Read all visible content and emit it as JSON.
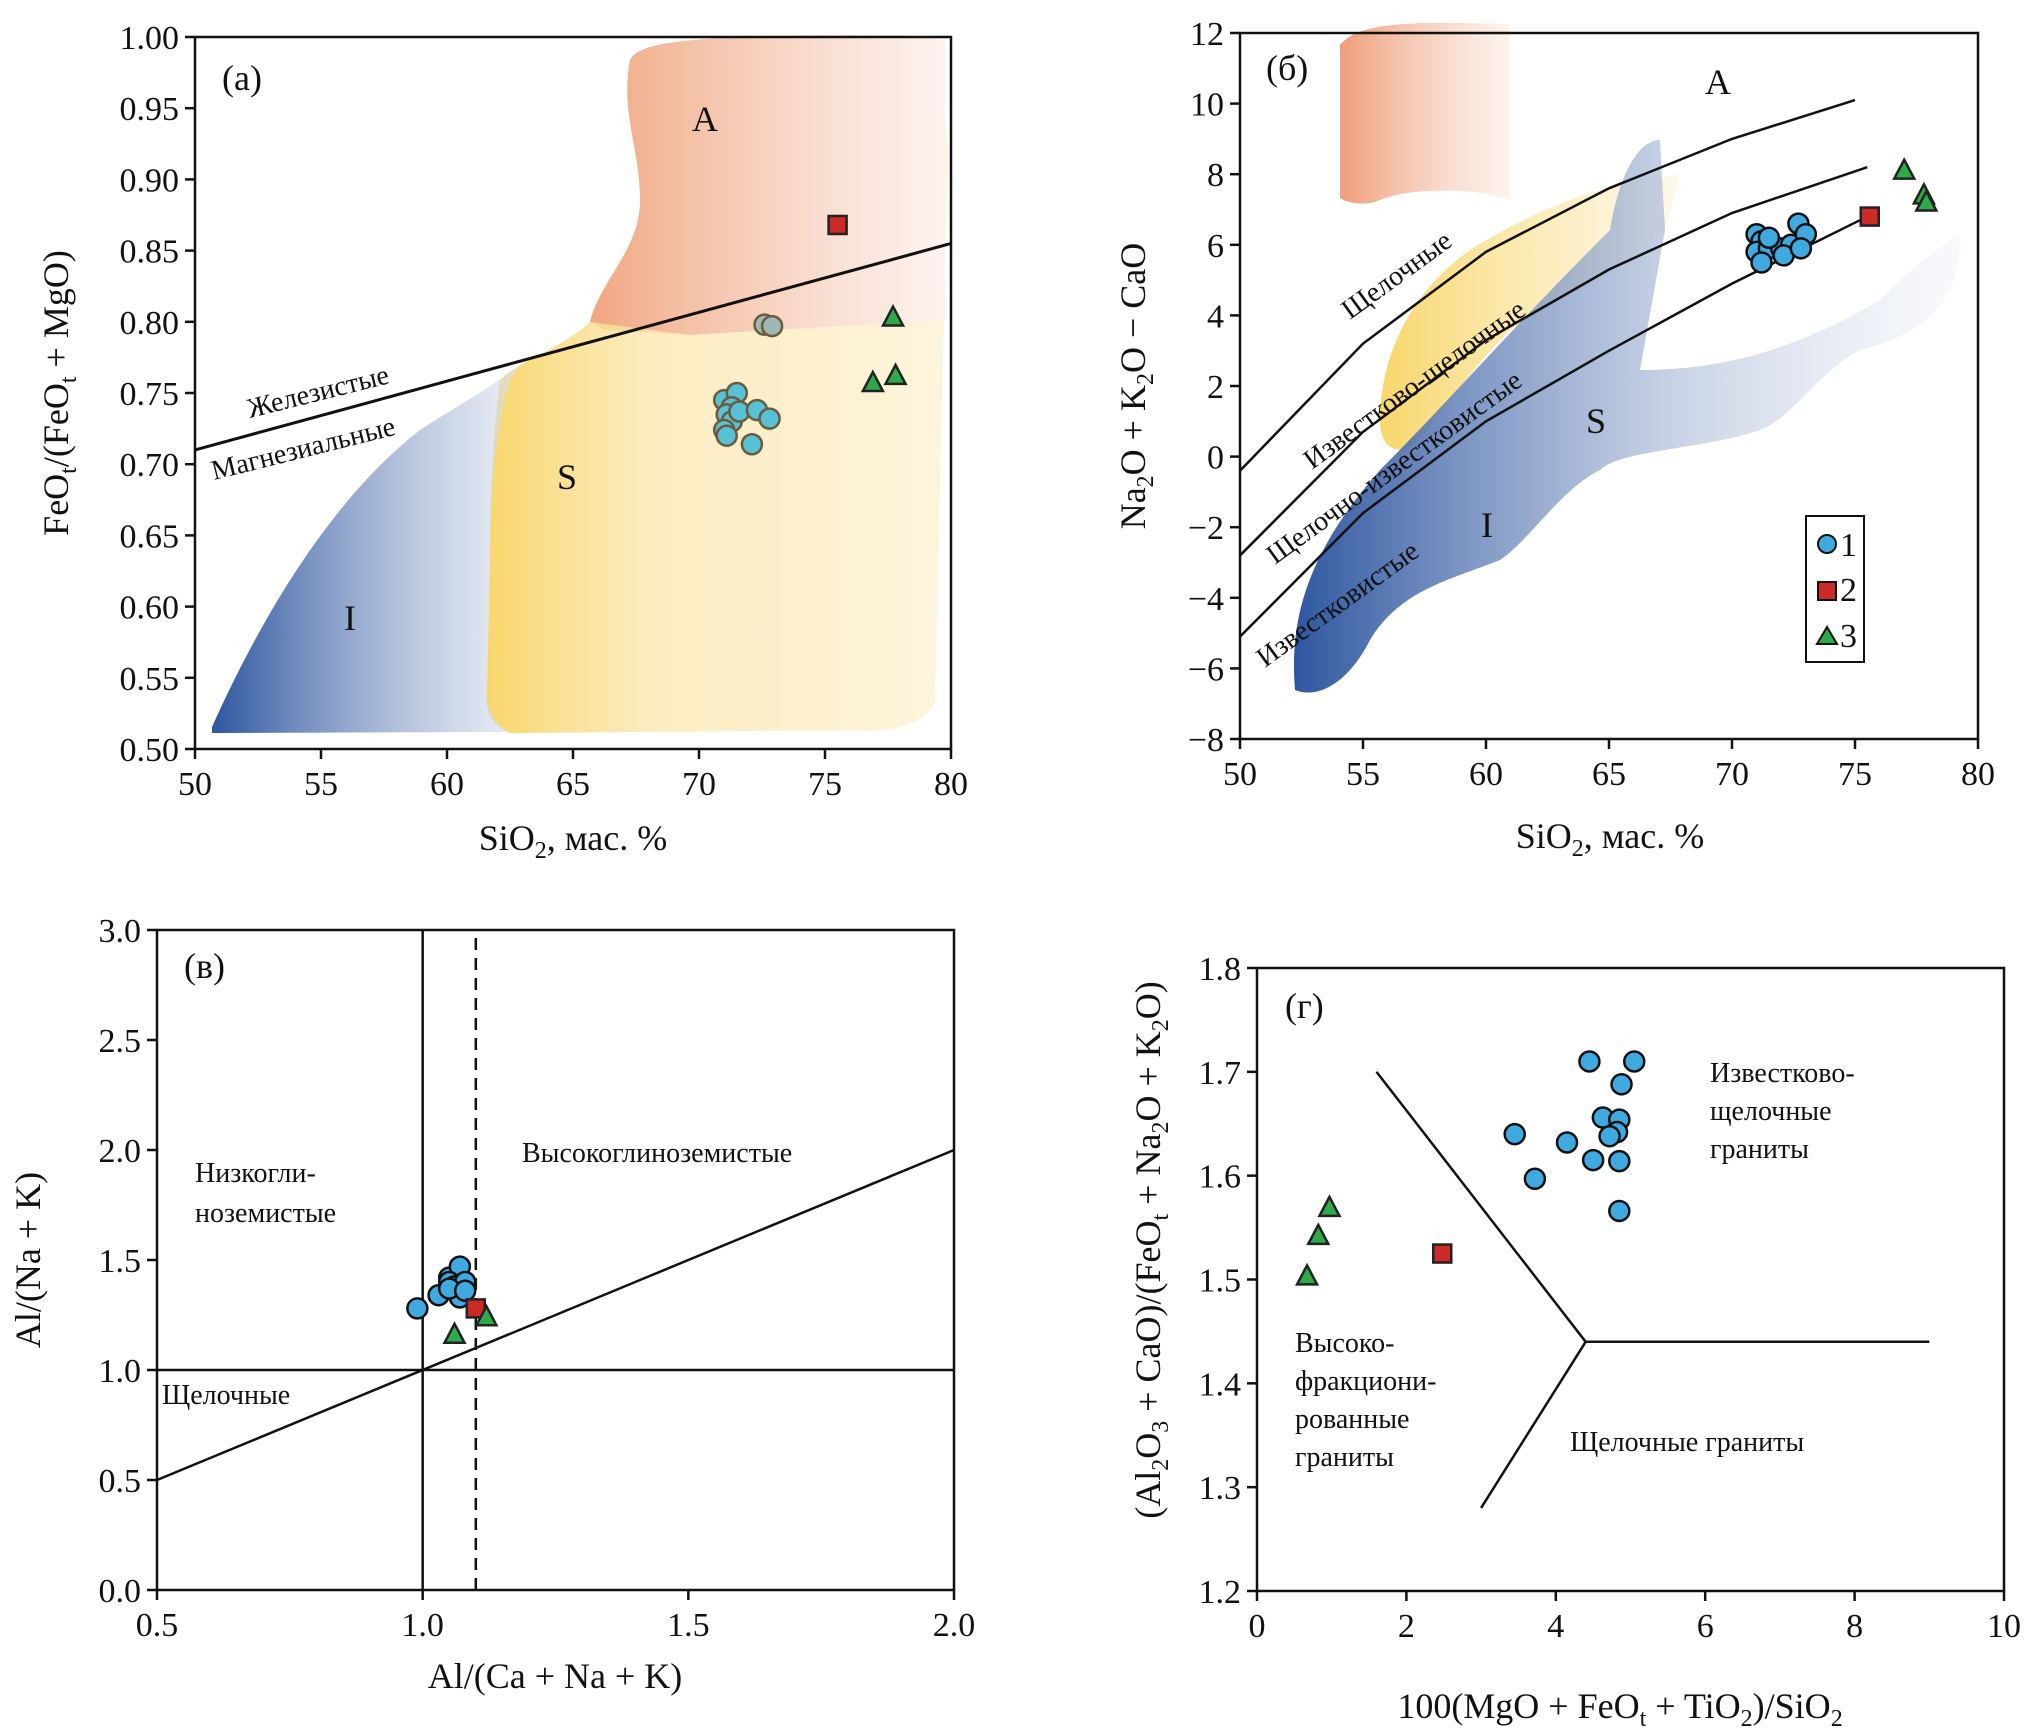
{
  "colors": {
    "circle": "#3fa9e0",
    "circle_a": "#57c2d6",
    "circle_a_faded": "#9fb8b4",
    "square": "#cc2a27",
    "triangle": "#2faa4a",
    "field_A": "#f0a27a",
    "field_S": "#f7d25a",
    "field_I": "#2e56a0"
  },
  "legend": {
    "items": [
      {
        "marker": "circle",
        "label": "1"
      },
      {
        "marker": "square",
        "label": "2"
      },
      {
        "marker": "triangle",
        "label": "3"
      }
    ],
    "position": "bottom-right of panel б"
  },
  "chart_data": [
    {
      "panel": "(a)",
      "type": "scatter",
      "xlabel": "SiO₂, мас. %",
      "ylabel": "FeOt/(FeOt + MgO)",
      "xlim": [
        50,
        80
      ],
      "ylim": [
        0.5,
        1.0
      ],
      "xticks": [
        "50",
        "55",
        "60",
        "65",
        "70",
        "75",
        "80"
      ],
      "yticks": [
        "0.50",
        "0.55",
        "0.60",
        "0.65",
        "0.70",
        "0.75",
        "0.80",
        "0.85",
        "0.90",
        "0.95",
        "1.00"
      ],
      "field_labels": {
        "A": "A",
        "S": "S",
        "I": "I"
      },
      "line_labels": {
        "upper": "Железистые",
        "lower": "Магнезиальные"
      },
      "boundary_line": [
        [
          50,
          0.71
        ],
        [
          80,
          0.855
        ]
      ],
      "series": [
        {
          "name": "1",
          "marker": "circle",
          "points": [
            [
              71.0,
              0.745
            ],
            [
              71.5,
              0.75
            ],
            [
              71.3,
              0.74
            ],
            [
              71.1,
              0.735
            ],
            [
              71.3,
              0.73
            ],
            [
              71.6,
              0.737
            ],
            [
              72.3,
              0.738
            ],
            [
              72.8,
              0.732
            ],
            [
              71.0,
              0.724
            ],
            [
              71.1,
              0.72
            ],
            [
              72.1,
              0.714
            ]
          ]
        },
        {
          "name": "1 (faded)",
          "marker": "circle",
          "points": [
            [
              72.6,
              0.798
            ],
            [
              72.9,
              0.797
            ]
          ]
        },
        {
          "name": "2",
          "marker": "square",
          "points": [
            [
              75.5,
              0.868
            ]
          ]
        },
        {
          "name": "3",
          "marker": "triangle",
          "points": [
            [
              77.7,
              0.803
            ],
            [
              76.9,
              0.757
            ],
            [
              77.8,
              0.762
            ]
          ]
        }
      ]
    },
    {
      "panel": "(б)",
      "type": "scatter",
      "xlabel": "SiO₂, мас. %",
      "ylabel": "Na₂O + K₂O − CaO",
      "xlim": [
        50,
        80
      ],
      "ylim": [
        -8,
        12
      ],
      "xticks": [
        "50",
        "55",
        "60",
        "65",
        "70",
        "75",
        "80"
      ],
      "yticks": [
        "−8",
        "−6",
        "−4",
        "−2",
        "0",
        "2",
        "4",
        "6",
        "8",
        "10",
        "12"
      ],
      "field_labels": {
        "A": "A",
        "S": "S",
        "I": "I"
      },
      "line_labels": [
        "Щелочные",
        "Известково-щелочные",
        "Щелочно-известковистые",
        "Известковистые"
      ],
      "boundary_lines": [
        [
          [
            50,
            -0.4
          ],
          [
            55,
            3.2
          ],
          [
            60,
            5.8
          ],
          [
            65,
            7.6
          ],
          [
            70,
            9.0
          ],
          [
            75,
            10.1
          ]
        ],
        [
          [
            50,
            -2.8
          ],
          [
            55,
            0.7
          ],
          [
            60,
            3.3
          ],
          [
            65,
            5.3
          ],
          [
            70,
            6.9
          ],
          [
            75.5,
            8.2
          ]
        ],
        [
          [
            50,
            -5.1
          ],
          [
            55,
            -1.6
          ],
          [
            60,
            1.0
          ],
          [
            65,
            3.0
          ],
          [
            70,
            4.9
          ],
          [
            75.5,
            6.8
          ]
        ]
      ],
      "series": [
        {
          "name": "1",
          "marker": "circle",
          "points": [
            [
              71.0,
              6.3
            ],
            [
              71.2,
              6.1
            ],
            [
              71.0,
              5.8
            ],
            [
              71.5,
              5.9
            ],
            [
              71.2,
              5.5
            ],
            [
              72.0,
              5.9
            ],
            [
              72.4,
              6.0
            ],
            [
              72.1,
              5.7
            ],
            [
              72.7,
              6.6
            ],
            [
              73.0,
              6.3
            ],
            [
              72.8,
              5.9
            ],
            [
              71.5,
              6.2
            ]
          ]
        },
        {
          "name": "2",
          "marker": "square",
          "points": [
            [
              75.6,
              6.8
            ]
          ]
        },
        {
          "name": "3",
          "marker": "triangle",
          "points": [
            [
              77.0,
              8.1
            ],
            [
              77.8,
              7.4
            ],
            [
              77.9,
              7.2
            ]
          ]
        }
      ]
    },
    {
      "panel": "(в)",
      "type": "scatter",
      "xlabel": "Al/(Ca + Na + K)",
      "ylabel": "Al/(Na + K)",
      "xlim": [
        0.5,
        2.0
      ],
      "ylim": [
        0.0,
        3.0
      ],
      "xticks": [
        "0.5",
        "1.0",
        "1.5",
        "2.0"
      ],
      "yticks": [
        "0.0",
        "0.5",
        "1.0",
        "1.5",
        "2.0",
        "2.5",
        "3.0"
      ],
      "region_labels": {
        "left": "Низкогли-|ноземистые",
        "right": "Высокоглиноземистые",
        "bottom": "Щелочные"
      },
      "lines": {
        "vertical_solid": 1.0,
        "vertical_dashed": 1.1,
        "horizontal": 1.0,
        "diagonal": [
          [
            0.5,
            0.5
          ],
          [
            2.0,
            2.0
          ]
        ]
      },
      "series": [
        {
          "name": "1",
          "marker": "circle",
          "points": [
            [
              0.99,
              1.28
            ],
            [
              1.03,
              1.34
            ],
            [
              1.05,
              1.42
            ],
            [
              1.07,
              1.47
            ],
            [
              1.05,
              1.4
            ],
            [
              1.06,
              1.38
            ],
            [
              1.08,
              1.4
            ],
            [
              1.07,
              1.33
            ],
            [
              1.05,
              1.37
            ],
            [
              1.08,
              1.36
            ]
          ]
        },
        {
          "name": "2",
          "marker": "square",
          "points": [
            [
              1.1,
              1.28
            ]
          ]
        },
        {
          "name": "3",
          "marker": "triangle",
          "points": [
            [
              1.06,
              1.16
            ],
            [
              1.12,
              1.24
            ]
          ]
        }
      ]
    },
    {
      "panel": "(г)",
      "type": "scatter",
      "xlabel": "100(MgO + FeOt + TiO₂)/SiO₂",
      "ylabel": "(Al₂O₃ + CaO)/(FeOt + Na₂O + K₂O)",
      "xlim": [
        0,
        10
      ],
      "ylim": [
        1.2,
        1.8
      ],
      "xticks": [
        "0",
        "2",
        "4",
        "6",
        "8",
        "10"
      ],
      "yticks": [
        "1.2",
        "1.3",
        "1.4",
        "1.5",
        "1.6",
        "1.7",
        "1.8"
      ],
      "region_labels": {
        "upper_right": "Известково-|щелочные|граниты",
        "left": "Высоко-|фракциони-|рованные|граниты",
        "lower_right": "Щелочные граниты"
      },
      "boundary_lines": [
        [
          [
            1.6,
            1.7
          ],
          [
            4.4,
            1.44
          ]
        ],
        [
          [
            4.4,
            1.44
          ],
          [
            3.0,
            1.28
          ]
        ],
        [
          [
            4.4,
            1.44
          ],
          [
            9.0,
            1.44
          ]
        ]
      ],
      "series": [
        {
          "name": "1",
          "marker": "circle",
          "points": [
            [
              4.45,
              1.71
            ],
            [
              5.05,
              1.71
            ],
            [
              4.88,
              1.688
            ],
            [
              4.63,
              1.656
            ],
            [
              4.85,
              1.654
            ],
            [
              4.82,
              1.642
            ],
            [
              4.72,
              1.638
            ],
            [
              3.45,
              1.64
            ],
            [
              4.15,
              1.632
            ],
            [
              4.5,
              1.615
            ],
            [
              4.85,
              1.614
            ],
            [
              3.72,
              1.597
            ],
            [
              4.85,
              1.566
            ]
          ]
        },
        {
          "name": "2",
          "marker": "square",
          "points": [
            [
              2.48,
              1.525
            ]
          ]
        },
        {
          "name": "3",
          "marker": "triangle",
          "points": [
            [
              0.97,
              1.569
            ],
            [
              0.82,
              1.542
            ],
            [
              0.67,
              1.503
            ]
          ]
        }
      ]
    }
  ]
}
